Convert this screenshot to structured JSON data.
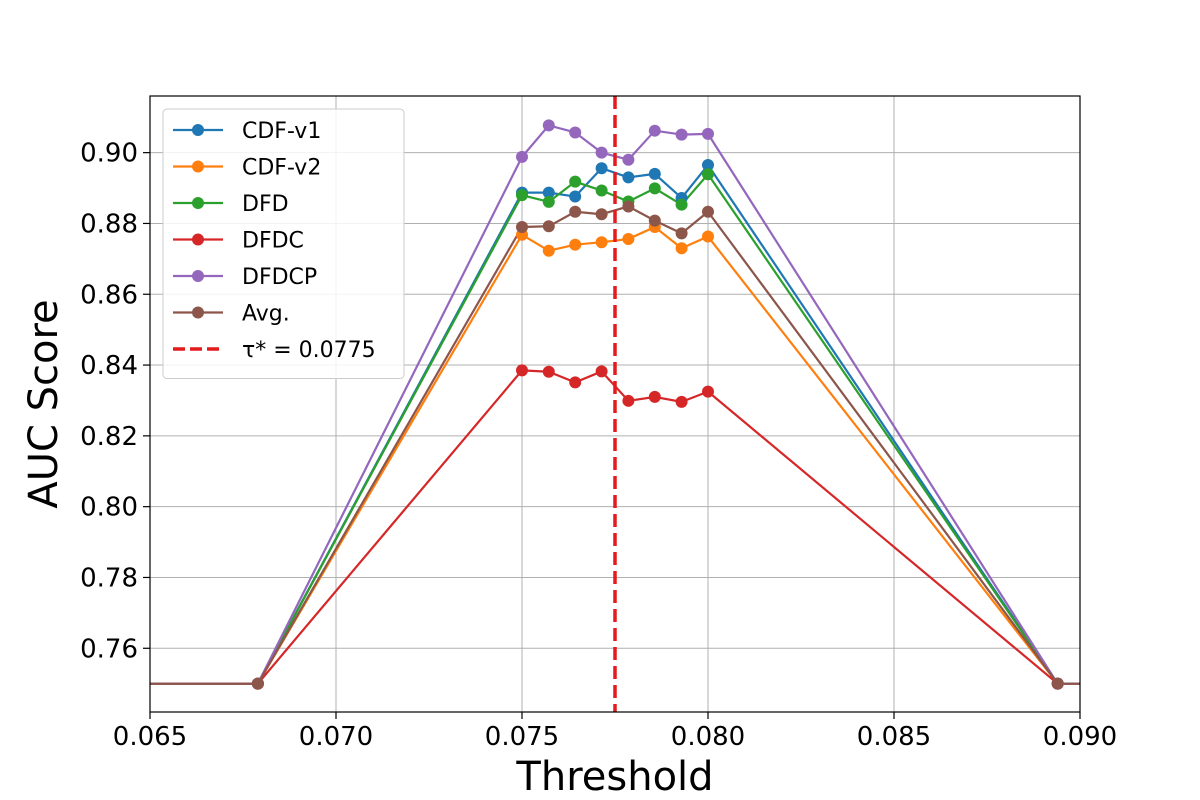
{
  "chart_data": {
    "type": "line",
    "xlabel": "Threshold",
    "ylabel": "AUC Score",
    "xlim": [
      0.065,
      0.09
    ],
    "ylim": [
      0.742,
      0.916
    ],
    "xticks": [
      0.065,
      0.07,
      0.075,
      0.08,
      0.085,
      0.09
    ],
    "xtick_labels": [
      "0.065",
      "0.070",
      "0.075",
      "0.080",
      "0.085",
      "0.090"
    ],
    "yticks": [
      0.76,
      0.78,
      0.8,
      0.82,
      0.84,
      0.86,
      0.88,
      0.9
    ],
    "ytick_labels": [
      "0.76",
      "0.78",
      "0.80",
      "0.82",
      "0.84",
      "0.86",
      "0.88",
      "0.90"
    ],
    "grid": true,
    "legend_position": "upper-left",
    "x": [
      0.065,
      0.0679,
      0.075,
      0.07572,
      0.07643,
      0.07714,
      0.07786,
      0.07857,
      0.07929,
      0.08,
      0.0894,
      0.09
    ],
    "series": [
      {
        "name": "CDF-v1",
        "color": "#1f77b4",
        "marker_from": 1,
        "marker_to": 10,
        "values": [
          0.75,
          0.75,
          0.8887,
          0.8887,
          0.8876,
          0.8956,
          0.893,
          0.894,
          0.8872,
          0.8965,
          0.75,
          0.75
        ]
      },
      {
        "name": "CDF-v2",
        "color": "#ff7f0e",
        "marker_from": 1,
        "marker_to": 10,
        "values": [
          0.75,
          0.75,
          0.8768,
          0.8723,
          0.874,
          0.8747,
          0.8756,
          0.879,
          0.873,
          0.8763,
          0.75,
          0.75
        ]
      },
      {
        "name": "DFD",
        "color": "#2ca02c",
        "marker_from": 1,
        "marker_to": 10,
        "values": [
          0.75,
          0.75,
          0.888,
          0.8861,
          0.8918,
          0.8893,
          0.8862,
          0.8899,
          0.8853,
          0.8939,
          0.75,
          0.75
        ]
      },
      {
        "name": "DFDC",
        "color": "#d62728",
        "marker_from": 1,
        "marker_to": 10,
        "values": [
          0.75,
          0.75,
          0.8385,
          0.8381,
          0.8351,
          0.8382,
          0.8299,
          0.831,
          0.8296,
          0.8325,
          0.75,
          0.75
        ]
      },
      {
        "name": "DFDCP",
        "color": "#9467bd",
        "marker_from": 1,
        "marker_to": 10,
        "values": [
          0.75,
          0.75,
          0.8988,
          0.9077,
          0.9057,
          0.9,
          0.898,
          0.9062,
          0.9051,
          0.9053,
          0.75,
          0.75
        ]
      },
      {
        "name": "Avg.",
        "color": "#8c564b",
        "marker_from": 1,
        "marker_to": 10,
        "values": [
          0.75,
          0.75,
          0.879,
          0.8792,
          0.8833,
          0.8826,
          0.8848,
          0.8808,
          0.8772,
          0.8833,
          0.75,
          0.75
        ]
      }
    ],
    "vline": {
      "name": "τ* = 0.0775",
      "x": 0.0775,
      "color": "#e41a1c",
      "style": "dashed"
    }
  }
}
